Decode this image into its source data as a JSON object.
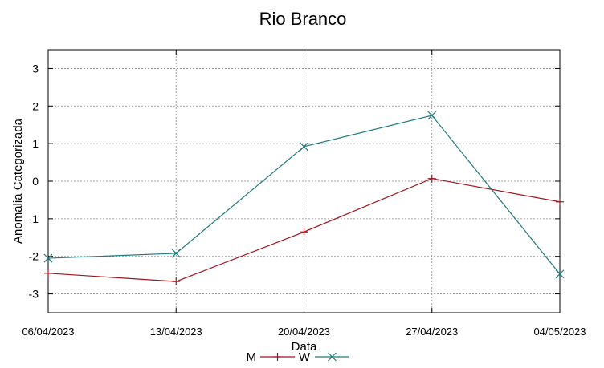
{
  "chart_data": {
    "type": "line",
    "title": "Rio Branco",
    "xlabel": "Data",
    "ylabel": "Anomalia Categorizada",
    "categories": [
      "06/04/2023",
      "13/04/2023",
      "20/04/2023",
      "27/04/2023",
      "04/05/2023"
    ],
    "ylim": [
      -3.5,
      3.5
    ],
    "yticks": [
      -3,
      -2,
      -1,
      0,
      1,
      2,
      3
    ],
    "grid": true,
    "legend": "bottom",
    "series": [
      {
        "name": "M",
        "values": [
          -2.45,
          -2.67,
          -1.35,
          0.07,
          -0.55
        ],
        "color": "#a0141e",
        "marker": "plus"
      },
      {
        "name": "W",
        "values": [
          -2.05,
          -1.92,
          0.92,
          1.75,
          -2.47
        ],
        "color": "#1f7a80",
        "marker": "cross"
      }
    ]
  }
}
